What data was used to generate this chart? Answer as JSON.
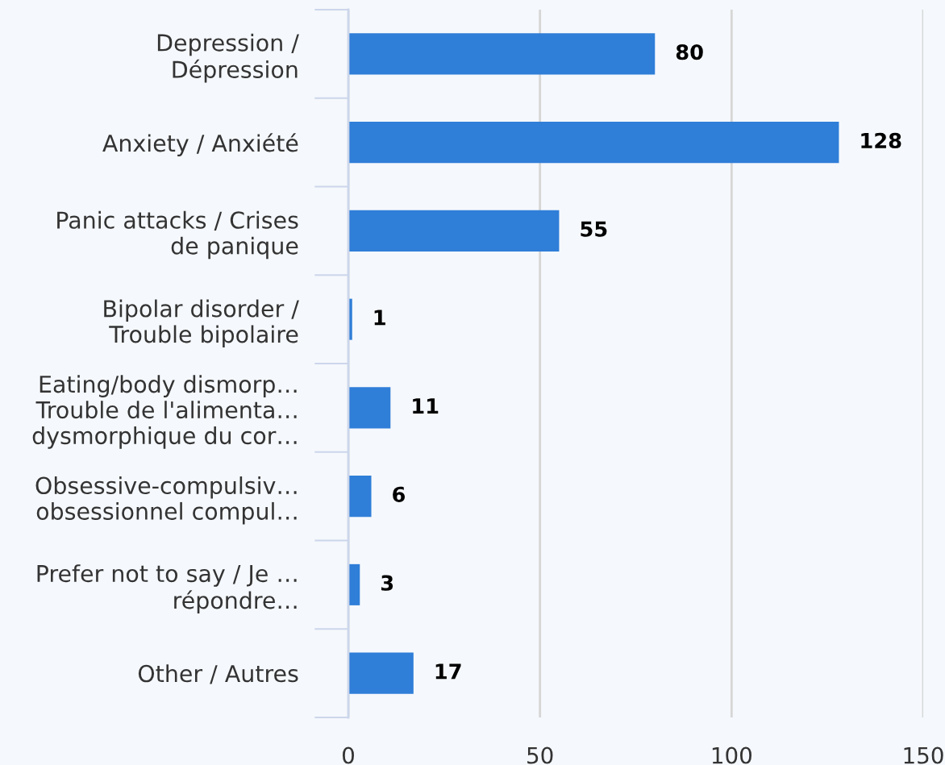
{
  "chart_data": {
    "type": "bar",
    "orientation": "horizontal",
    "categories": [
      "Depression /\nDépression",
      "Anxiety / Anxiété",
      "Panic attacks / Crises\nde panique",
      "Bipolar disorder /\nTrouble bipolaire",
      "Eating/body dismorp…\nTrouble de l'alimenta…\ndysmorphique du cor…",
      "Obsessive-compulsiv…\nobsessionnel compul…",
      "Prefer not to say / Je …\nrépondre…",
      "Other / Autres"
    ],
    "values": [
      80,
      128,
      55,
      1,
      11,
      6,
      3,
      17
    ],
    "color": "#2f7ed8",
    "xlim": [
      0,
      150
    ],
    "xticks": [
      0,
      50,
      100,
      150
    ],
    "grid": "x",
    "data_labels": true
  }
}
